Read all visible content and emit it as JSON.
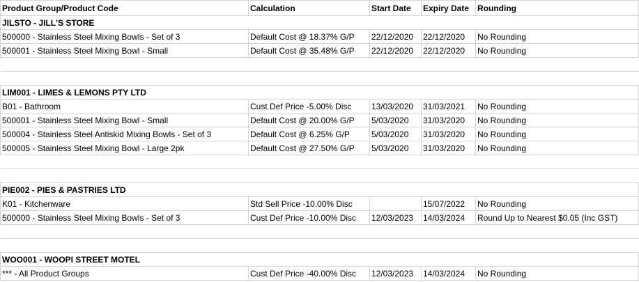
{
  "header": {
    "columns": [
      "Product Group/Product Code",
      "Calculation",
      "Start Date",
      "Expiry Date",
      "Rounding"
    ]
  },
  "groups": [
    {
      "title": "JILSTO - JILL'S STORE",
      "rows": [
        [
          "500000 - Stainless Steel Mixing Bowls - Set of 3",
          "Default Cost @ 18.37% G/P",
          "22/12/2020",
          "22/12/2020",
          "No Rounding"
        ],
        [
          "500001 - Stainless Steel Mixing Bowl - Small",
          "Default Cost @ 35.48% G/P",
          "22/12/2020",
          "22/12/2020",
          "No Rounding"
        ]
      ]
    },
    {
      "title": "LIM001 - LIMES & LEMONS PTY LTD",
      "rows": [
        [
          "B01 - Bathroom",
          "Cust Def Price -5.00% Disc",
          "13/03/2020",
          "31/03/2021",
          "No Rounding"
        ],
        [
          "500001 - Stainless Steel Mixing Bowl - Small",
          "Default Cost @ 20.00% G/P",
          "5/03/2020",
          "31/03/2020",
          "No Rounding"
        ],
        [
          "500004 - Stainless Steel Antiskid Mixing Bowls - Set of 3",
          "Default Cost @ 6.25% G/P",
          "5/03/2020",
          "31/03/2020",
          "No Rounding"
        ],
        [
          "500005 - Stainless Steel Mixing Bowl - Large 2pk",
          "Default Cost @ 27.50% G/P",
          "5/03/2020",
          "31/03/2020",
          "No Rounding"
        ]
      ]
    },
    {
      "title": "PIE002 - PIES & PASTRIES LTD",
      "rows": [
        [
          "K01 - Kitchenware",
          "Std Sell Price -10.00% Disc",
          null,
          "15/07/2022",
          "No Rounding"
        ],
        [
          "500000 - Stainless Steel Mixing Bowls - Set of 3",
          "Cust Def Price -10.00% Disc",
          "12/03/2023",
          "14/03/2024",
          "Round Up to Nearest $0.05 (Inc GST)"
        ]
      ]
    },
    {
      "title": "WOO001 - WOOPI STREET MOTEL",
      "rows": [
        [
          "*** - All Product Groups",
          "Cust Def Price -40.00% Disc",
          "12/03/2023",
          "14/03/2024",
          "No Rounding"
        ]
      ]
    }
  ]
}
